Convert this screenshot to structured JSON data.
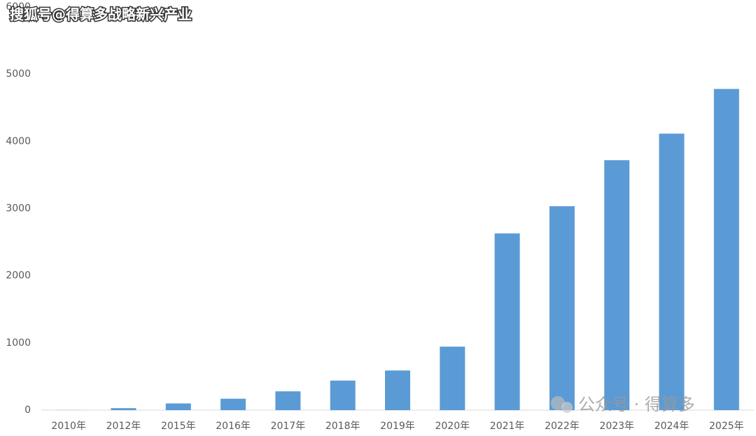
{
  "chart_data": {
    "type": "bar",
    "categories": [
      "2010年",
      "2012年",
      "2015年",
      "2016年",
      "2017年",
      "2018年",
      "2019年",
      "2020年",
      "2021年",
      "2022年",
      "2023年",
      "2024年",
      "2025年"
    ],
    "values": [
      2,
      30,
      100,
      170,
      280,
      440,
      590,
      945,
      2630,
      3035,
      3720,
      4115,
      4780
    ],
    "color": "#5b9bd5",
    "ylim": [
      0,
      6000
    ],
    "yticks": [
      0,
      1000,
      2000,
      3000,
      4000,
      5000,
      6000
    ],
    "grid": false
  },
  "watermarks": [
    "搜狐号@得算多战略新兴产业",
    "公众号 · 得算多"
  ]
}
